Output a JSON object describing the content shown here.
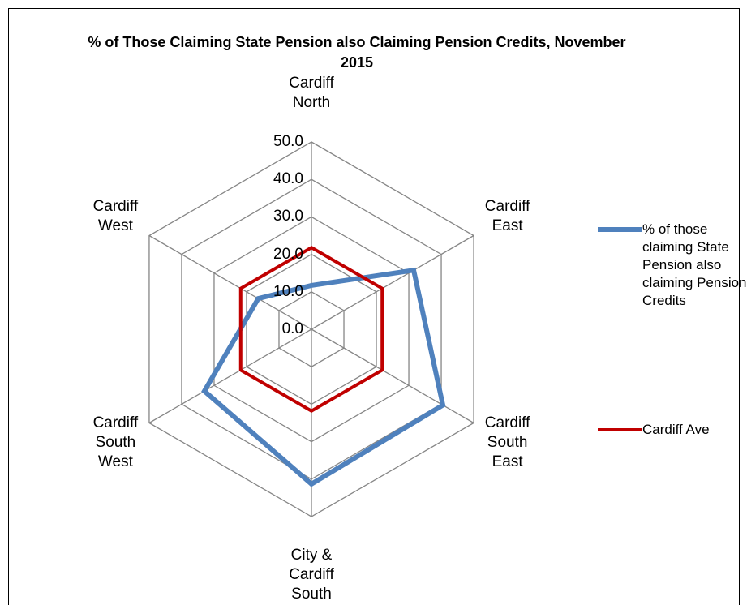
{
  "chart_data": {
    "type": "radar",
    "title": "% of Those Claiming State Pension also Claiming Pension Credits, November 2015",
    "categories": [
      "Cardiff North",
      "Cardiff East",
      "Cardiff South East",
      "City & Cardiff South",
      "Cardiff South West",
      "Cardiff West"
    ],
    "series": [
      {
        "name": "% of those claiming State Pension also claiming Pension Credits",
        "color": "#4f81bd",
        "values": [
          11.7,
          31.5,
          40.5,
          41.3,
          33.0,
          16.4
        ]
      },
      {
        "name": "Cardiff Ave",
        "color": "#c00000",
        "values": [
          21.8,
          21.8,
          21.8,
          21.8,
          21.8,
          21.8
        ]
      }
    ],
    "ylim": [
      0,
      50
    ],
    "yticks": [
      {
        "value": 0,
        "label": "0.0"
      },
      {
        "value": 10,
        "label": "10.0"
      },
      {
        "value": 20,
        "label": "20.0"
      },
      {
        "value": 30,
        "label": "30.0"
      },
      {
        "value": 40,
        "label": "40.0"
      },
      {
        "value": 50,
        "label": "50.0"
      }
    ],
    "grid": true,
    "legend": "right"
  }
}
